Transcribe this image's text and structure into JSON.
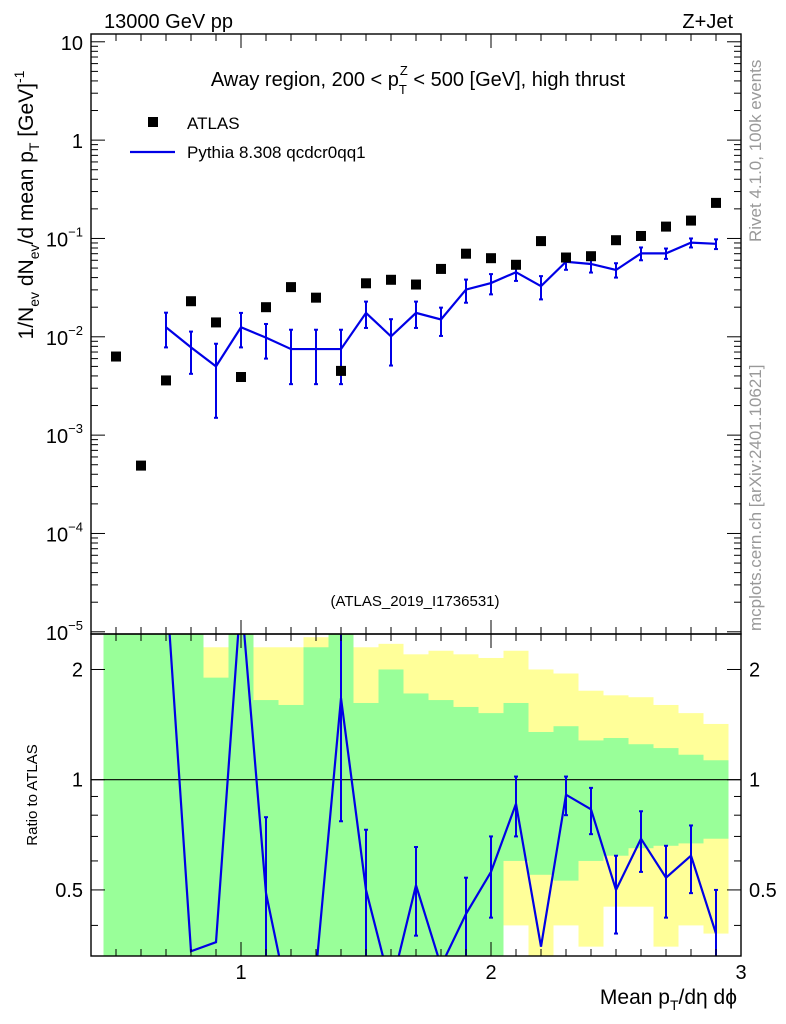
{
  "header": {
    "beam": "13000 GeV pp",
    "process": "Z+Jet"
  },
  "side_labels": {
    "rivet": "Rivet 4.1.0,  100k events",
    "mcplots": "mcplots.cern.ch [arXiv:2401.10621]"
  },
  "colors": {
    "mc_line": "#0000e6",
    "band_inner": "#99ff99",
    "band_outer": "#ffff99",
    "data_marker": "#000000",
    "watermark": "#999999"
  },
  "chart_data": {
    "type": "scatter",
    "title": "Away region, 200 < p_T^Z < 500 [GeV], high thrust",
    "title_parts": {
      "pre": "Away region, 200 < p",
      "sub": "T",
      "sup": "Z",
      "post": " < 500 [GeV], high thrust"
    },
    "analysis_id": "(ATLAS_2019_I1736531)",
    "xlabel": "Mean p_T/dη dϕ",
    "xlabel_parts": {
      "pre": "Mean p",
      "sub": "T",
      "post": "/dη dϕ"
    },
    "ylabel": "1/N_ev dN_ev/d mean p_T [GeV]^-1",
    "ylabel_parts": {
      "a": "1/N",
      "b": "ev",
      "c": " dN",
      "d": "ev",
      "e": "/d mean p",
      "f": "T",
      "g": " [GeV]",
      "h": "-1"
    },
    "xlim": [
      0.4,
      3.0
    ],
    "ylim": [
      7e-06,
      12
    ],
    "yscale": "log",
    "x_ticks": [
      1,
      2,
      3
    ],
    "x_tick_labels": [
      "1",
      "2",
      "3"
    ],
    "y_ticks": [
      10,
      1,
      0.1,
      0.01,
      0.001,
      0.0001,
      1e-05
    ],
    "y_tick_labels": [
      {
        "base": "10",
        "exp": ""
      },
      {
        "base": "1",
        "exp": ""
      },
      {
        "base": "10",
        "exp": "−1"
      },
      {
        "base": "10",
        "exp": "−2"
      },
      {
        "base": "10",
        "exp": "−3"
      },
      {
        "base": "10",
        "exp": "−4"
      },
      {
        "base": "10",
        "exp": "−5"
      }
    ],
    "legend": [
      "ATLAS",
      "Pythia 8.308 qcdcr0qq1"
    ],
    "legend_position": "top-left",
    "series": [
      {
        "name": "ATLAS",
        "style": "markers",
        "x": [
          0.5,
          0.6,
          0.7,
          0.8,
          0.9,
          1.0,
          1.1,
          1.2,
          1.3,
          1.4,
          1.5,
          1.6,
          1.7,
          1.8,
          1.9,
          2.0,
          2.1,
          2.2,
          2.3,
          2.4,
          2.5,
          2.6,
          2.7,
          2.8,
          2.9
        ],
        "y": [
          0.0063,
          0.00049,
          0.0036,
          0.023,
          0.014,
          0.0039,
          0.02,
          0.032,
          0.025,
          0.0045,
          0.035,
          0.038,
          0.034,
          0.049,
          0.07,
          0.063,
          0.054,
          0.094,
          0.064,
          0.066,
          0.096,
          0.106,
          0.132,
          0.152,
          0.23
        ]
      },
      {
        "name": "Pythia 8.308 qcdcr0qq1",
        "style": "line",
        "x": [
          0.7,
          0.8,
          0.9,
          1.0,
          1.1,
          1.2,
          1.3,
          1.4,
          1.5,
          1.6,
          1.7,
          1.8,
          1.9,
          2.0,
          2.1,
          2.2,
          2.3,
          2.4,
          2.5,
          2.6,
          2.7,
          2.8,
          2.9
        ],
        "y": [
          0.0125,
          0.0078,
          0.005,
          0.0125,
          0.0098,
          0.0075,
          0.0075,
          0.0075,
          0.0175,
          0.0101,
          0.0175,
          0.015,
          0.0302,
          0.0352,
          0.0454,
          0.0327,
          0.058,
          0.055,
          0.0478,
          0.0705,
          0.0705,
          0.0907,
          0.0882
        ],
        "y_lo": [
          0.0078,
          0.0042,
          0.0015,
          0.0078,
          0.006,
          0.0033,
          0.0033,
          0.0033,
          0.0123,
          0.0051,
          0.0123,
          0.0102,
          0.0222,
          0.027,
          0.037,
          0.024,
          0.048,
          0.045,
          0.04,
          0.06,
          0.062,
          0.081,
          0.078
        ],
        "y_hi": [
          0.0176,
          0.0113,
          0.0085,
          0.0175,
          0.0135,
          0.0118,
          0.0118,
          0.0118,
          0.0228,
          0.0151,
          0.0228,
          0.0198,
          0.0382,
          0.0434,
          0.0538,
          0.0414,
          0.068,
          0.065,
          0.056,
          0.081,
          0.079,
          0.1,
          0.098
        ]
      }
    ],
    "ratio": {
      "ylabel": "Ratio to ATLAS",
      "ylim": [
        0.33,
        2.5
      ],
      "yscale": "log",
      "y_ticks": [
        0.5,
        1,
        2
      ],
      "y_tick_labels": [
        "0.5",
        "1",
        "2"
      ],
      "bin_edges": [
        0.45,
        0.55,
        0.65,
        0.75,
        0.85,
        0.95,
        1.05,
        1.15,
        1.25,
        1.35,
        1.45,
        1.55,
        1.65,
        1.75,
        1.85,
        1.95,
        2.05,
        2.15,
        2.25,
        2.35,
        2.45,
        2.55,
        2.65,
        2.75,
        2.85,
        2.95
      ],
      "band_outer_lo": [
        0.01,
        0.01,
        0.01,
        0.01,
        0.3,
        0.01,
        0.01,
        0.3,
        0.3,
        0.01,
        0.35,
        0.3,
        0.35,
        0.33,
        0.37,
        0.35,
        0.4,
        0.33,
        0.4,
        0.35,
        0.45,
        0.45,
        0.35,
        0.4,
        0.38
      ],
      "band_outer_hi": [
        5,
        5,
        5,
        2.0,
        2.3,
        5,
        2.3,
        2.3,
        2.45,
        5,
        2.3,
        2.35,
        2.2,
        2.25,
        2.2,
        2.15,
        2.25,
        2.0,
        1.95,
        1.75,
        1.7,
        1.68,
        1.6,
        1.52,
        1.42
      ],
      "band_inner_lo": [
        0.01,
        0.01,
        0.01,
        0.01,
        0.01,
        0.01,
        0.01,
        0.01,
        0.01,
        0.01,
        0.01,
        0.01,
        0.01,
        0.01,
        0.01,
        0.01,
        0.6,
        0.55,
        0.53,
        0.6,
        0.62,
        0.65,
        0.66,
        0.67,
        0.69
      ],
      "band_inner_hi": [
        5,
        5,
        5,
        5,
        1.9,
        5,
        1.65,
        1.6,
        2.3,
        5,
        1.62,
        2.0,
        1.72,
        1.65,
        1.58,
        1.52,
        1.62,
        1.35,
        1.4,
        1.28,
        1.3,
        1.25,
        1.22,
        1.17,
        1.13
      ],
      "mc_x": [
        0.7,
        0.8,
        0.9,
        1.0,
        1.1,
        1.2,
        1.3,
        1.4,
        1.5,
        1.6,
        1.7,
        1.8,
        1.9,
        2.0,
        2.1,
        2.2,
        2.3,
        2.4,
        2.5,
        2.6,
        2.7,
        2.8,
        2.9
      ],
      "mc_y": [
        3.5,
        0.34,
        0.36,
        3.2,
        0.49,
        0.23,
        0.3,
        1.67,
        0.5,
        0.27,
        0.515,
        0.31,
        0.43,
        0.56,
        0.86,
        0.35,
        0.91,
        0.83,
        0.5,
        0.69,
        0.54,
        0.62,
        0.38
      ],
      "mc_err": [
        0,
        0,
        0,
        0,
        0.3,
        0,
        0,
        0.9,
        0.23,
        0,
        0.14,
        0,
        0.11,
        0.14,
        0.16,
        0,
        0.11,
        0.12,
        0.12,
        0.13,
        0.12,
        0.13,
        0.12
      ]
    }
  }
}
